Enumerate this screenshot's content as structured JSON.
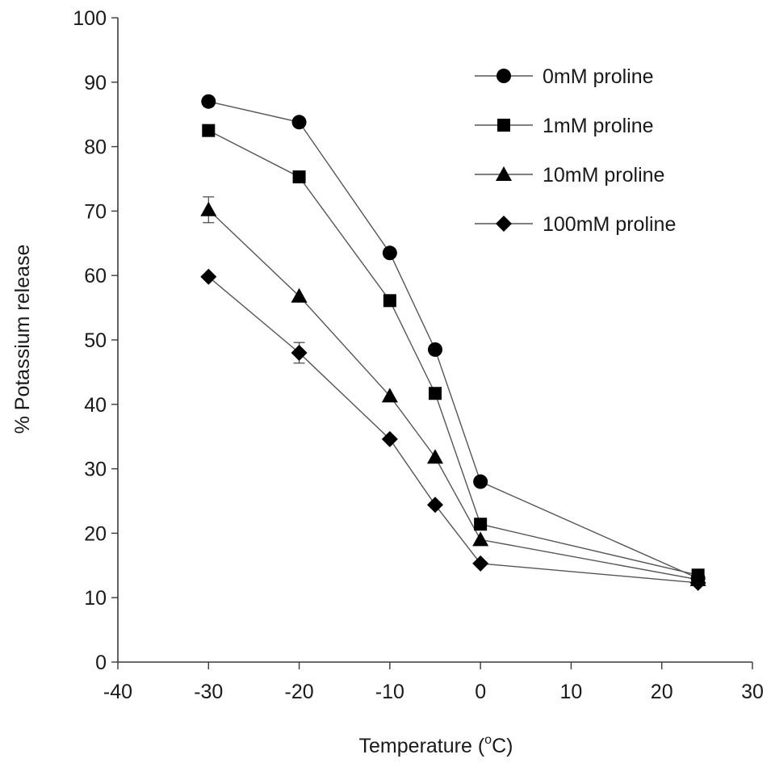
{
  "chart_data": {
    "type": "line",
    "title": "",
    "xlabel": "Temperature (",
    "xlabel_sup": "o",
    "xlabel_tail": "C)",
    "ylabel": "% Potassium release",
    "xlim": [
      -40,
      30
    ],
    "ylim": [
      0,
      100
    ],
    "x_ticks": [
      -40,
      -30,
      -20,
      -10,
      0,
      10,
      20,
      30
    ],
    "y_ticks": [
      0,
      10,
      20,
      30,
      40,
      50,
      60,
      70,
      80,
      90,
      100
    ],
    "x_tick_labels": [
      "-40",
      "-30",
      "-20",
      "-10",
      "0",
      "10",
      "20",
      "30"
    ],
    "y_tick_labels": [
      "0",
      "10",
      "20",
      "30",
      "40",
      "50",
      "60",
      "70",
      "80",
      "90",
      "100"
    ],
    "grid": false,
    "legend_position": "top-right",
    "x": [
      -30,
      -20,
      -10,
      -5,
      0,
      24
    ],
    "series": [
      {
        "name": "0mM proline",
        "marker": "circle",
        "color": "#000000",
        "values": [
          87,
          83.8,
          63.5,
          48.5,
          28,
          13
        ]
      },
      {
        "name": "1mM proline",
        "marker": "square",
        "color": "#000000",
        "values": [
          82.5,
          75.3,
          56.1,
          41.7,
          21.4,
          13.5
        ]
      },
      {
        "name": "10mM proline",
        "marker": "triangle",
        "color": "#000000",
        "values": [
          70.2,
          56.8,
          41.3,
          31.8,
          19,
          12.8
        ]
      },
      {
        "name": "100mM proline",
        "marker": "diamond",
        "color": "#000000",
        "values": [
          59.8,
          48,
          34.6,
          24.4,
          15.3,
          12.3
        ]
      }
    ],
    "error_bars": [
      {
        "series": "10mM proline",
        "x": -30,
        "y": 70.2,
        "err": 2
      },
      {
        "series": "100mM proline",
        "x": -20,
        "y": 48,
        "err": 1.6
      }
    ]
  }
}
